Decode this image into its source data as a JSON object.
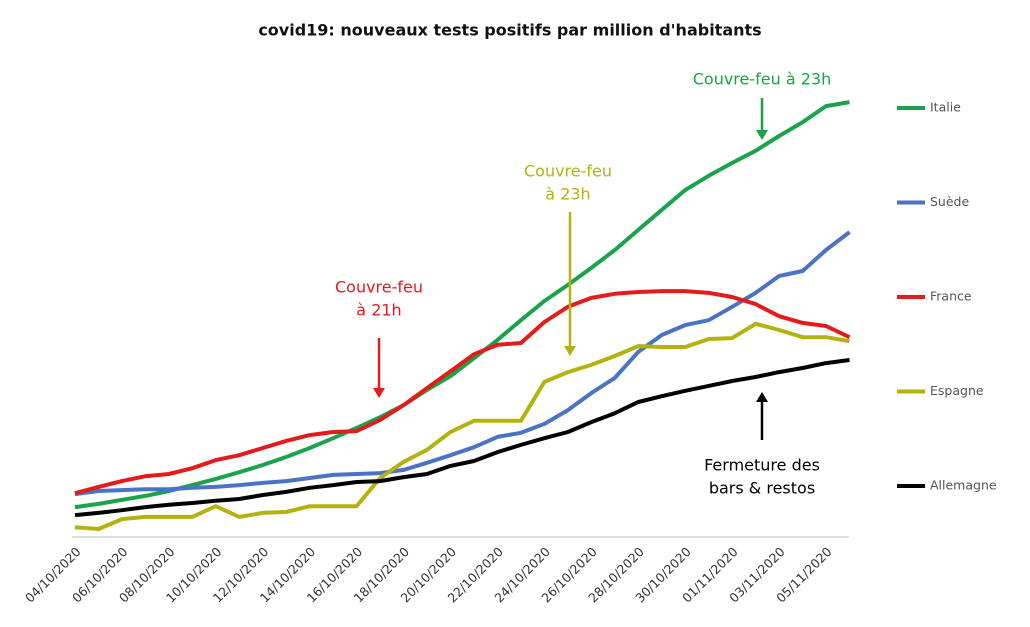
{
  "chart_data": {
    "type": "line",
    "title": "covid19: nouveaux tests positifs par million d'habitants",
    "categories": [
      "04/10/2020",
      null,
      "06/10/2020",
      null,
      "08/10/2020",
      null,
      "10/10/2020",
      null,
      "12/10/2020",
      null,
      "14/10/2020",
      null,
      "16/10/2020",
      null,
      "18/10/2020",
      null,
      "20/10/2020",
      null,
      "22/10/2020",
      null,
      "24/10/2020",
      null,
      "26/10/2020",
      null,
      "28/10/2020",
      null,
      "30/10/2020",
      null,
      "01/11/2020",
      null,
      "03/11/2020",
      null,
      "05/11/2020",
      null
    ],
    "ylim": [
      0,
      100
    ],
    "legend": "right",
    "series": [
      {
        "name": "Italie",
        "color": "#1aa34a",
        "values": [
          6.7,
          7.4,
          8.3,
          9.2,
          10.3,
          11.6,
          13.0,
          14.5,
          16.1,
          17.9,
          19.9,
          22.1,
          24.4,
          26.8,
          29.5,
          32.9,
          36.0,
          40.0,
          44.1,
          48.5,
          52.8,
          56.4,
          60.2,
          64.2,
          68.7,
          73.2,
          77.6,
          80.8,
          83.7,
          86.4,
          89.7,
          92.8,
          96.4,
          97.3
        ]
      },
      {
        "name": "Suède",
        "color": "#4a73c4",
        "values": [
          9.6,
          10.3,
          10.5,
          10.7,
          10.7,
          11.0,
          11.2,
          11.6,
          12.1,
          12.5,
          13.2,
          13.9,
          14.1,
          14.3,
          15.0,
          16.6,
          18.3,
          20.1,
          22.4,
          23.3,
          25.3,
          28.4,
          32.2,
          35.6,
          41.4,
          45.2,
          47.4,
          48.5,
          51.5,
          54.6,
          58.4,
          59.5,
          64.2,
          68.2
        ]
      },
      {
        "name": "France",
        "color": "#e41b1b",
        "values": [
          9.8,
          11.2,
          12.5,
          13.6,
          14.1,
          15.4,
          17.2,
          18.3,
          19.9,
          21.5,
          22.8,
          23.5,
          23.7,
          26.2,
          29.5,
          33.3,
          37.1,
          40.9,
          43.0,
          43.4,
          48.1,
          51.5,
          53.5,
          54.4,
          54.8,
          55.0,
          55.0,
          54.6,
          53.7,
          52.1,
          49.4,
          47.9,
          47.2,
          44.7
        ]
      },
      {
        "name": "Espagne",
        "color": "#b5b20f",
        "values": [
          2.2,
          1.8,
          4.0,
          4.5,
          4.5,
          4.5,
          6.9,
          4.5,
          5.4,
          5.6,
          6.9,
          6.9,
          6.9,
          13.2,
          16.8,
          19.5,
          23.5,
          26.0,
          26.0,
          26.0,
          34.7,
          36.9,
          38.5,
          40.5,
          42.7,
          42.5,
          42.5,
          44.3,
          44.5,
          47.7,
          46.3,
          44.7,
          44.7,
          43.8
        ]
      },
      {
        "name": "Allemagne",
        "color": "#000000",
        "values": [
          4.9,
          5.4,
          6.0,
          6.7,
          7.2,
          7.6,
          8.1,
          8.5,
          9.4,
          10.1,
          11.0,
          11.6,
          12.3,
          12.5,
          13.4,
          14.1,
          15.9,
          17.0,
          19.0,
          20.6,
          22.1,
          23.5,
          25.7,
          27.7,
          30.2,
          31.5,
          32.7,
          33.8,
          34.9,
          35.8,
          36.9,
          37.8,
          38.9,
          39.6
        ]
      }
    ],
    "annotations": [
      {
        "lines": [
          "Couvre-feu à 23h"
        ],
        "color": "#1aa34a"
      },
      {
        "lines": [
          "Couvre-feu",
          "à 23h"
        ],
        "color": "#b5b20f"
      },
      {
        "lines": [
          "Couvre-feu",
          "à 21h"
        ],
        "color": "#e41b1b"
      },
      {
        "lines": [
          "Fermeture des",
          "bars & restos"
        ],
        "color": "#000000"
      }
    ]
  }
}
